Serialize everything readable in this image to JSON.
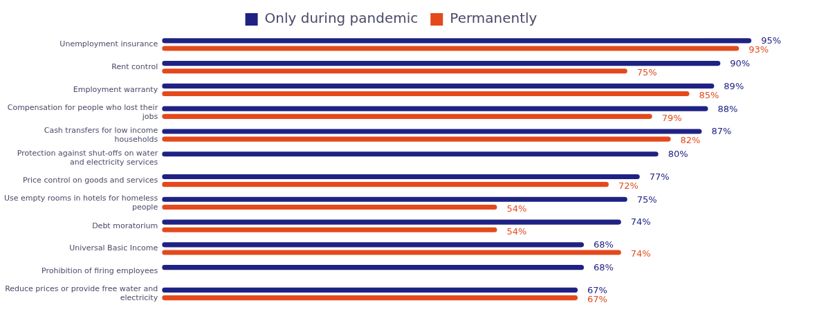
{
  "chart_data": {
    "type": "bar",
    "orientation": "horizontal",
    "categories": [
      "Unemployment insurance",
      "Rent control",
      "Employment warranty",
      "Compensation for people who lost their jobs",
      "Cash transfers for low income households",
      "Protection against shut-offs on water and electricity services",
      "Price control on goods and services",
      "Use empty rooms in hotels for homeless people",
      "Debt moratorium",
      "Universal Basic Income",
      "Prohibition of firing employees",
      "Reduce prices or provide free water and electricity"
    ],
    "series": [
      {
        "name": "Only during pandemic",
        "color": "#1f2283",
        "values": [
          95,
          90,
          89,
          88,
          87,
          80,
          77,
          75,
          74,
          68,
          68,
          67
        ],
        "value_labels": [
          "95%",
          "90%",
          "89%",
          "88%",
          "87%",
          "80%",
          "77%",
          "75%",
          "74%",
          "68%",
          "68%",
          "67%"
        ]
      },
      {
        "name": "Permanently",
        "color": "#e4491c",
        "values": [
          93,
          75,
          85,
          79,
          82,
          null,
          72,
          54,
          54,
          74,
          null,
          67
        ],
        "value_labels": [
          "93%",
          "75%",
          "85%",
          "79%",
          "82%",
          null,
          "72%",
          "54%",
          "54%",
          "74%",
          null,
          "67%"
        ]
      }
    ],
    "tick_labels": "y",
    "grid": false,
    "legend": "top"
  }
}
